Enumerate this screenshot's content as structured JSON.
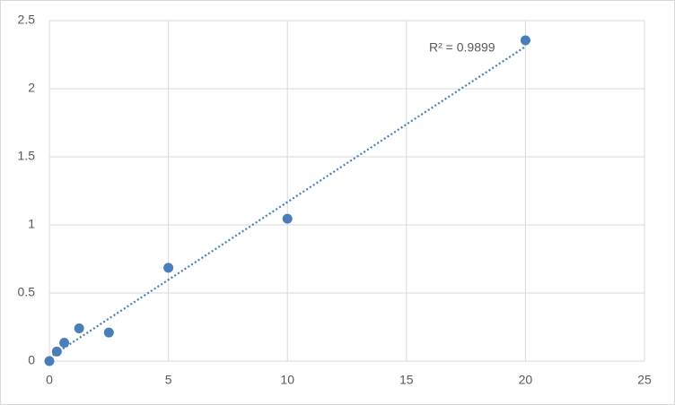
{
  "chart_data": {
    "type": "scatter",
    "annotation": "R² = 0.9899",
    "series": [
      {
        "color": "#4a7ebb",
        "x": [
          0,
          0.313,
          0.625,
          1.25,
          2.5,
          5,
          10,
          20
        ],
        "values": [
          0,
          0.07,
          0.135,
          0.24,
          0.21,
          0.685,
          1.045,
          2.355
        ]
      }
    ],
    "trendline": "linear",
    "xlim": [
      0,
      25
    ],
    "xticks": [
      0,
      5,
      10,
      15,
      20,
      25
    ],
    "ylim": [
      0,
      2.5
    ],
    "yticks": [
      0,
      0.5,
      1,
      1.5,
      2,
      2.5
    ],
    "grid": true
  }
}
